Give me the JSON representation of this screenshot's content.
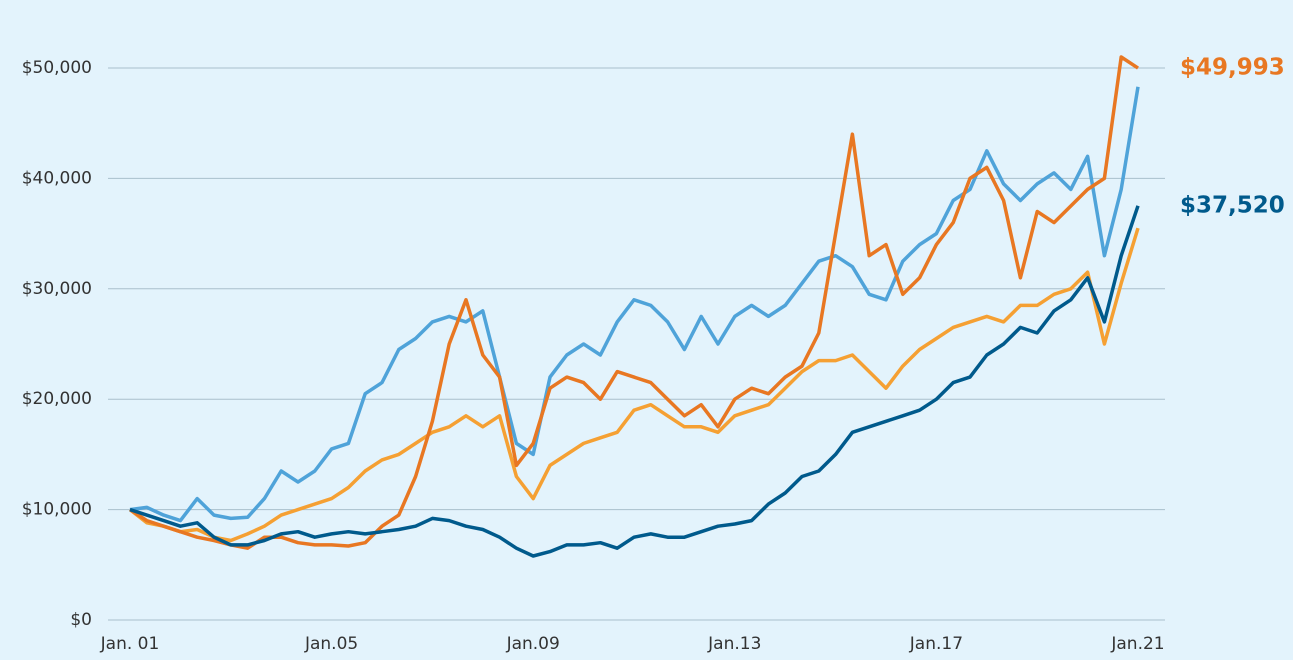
{
  "chart_data": {
    "type": "line",
    "categories": [
      "Jan. 01",
      null,
      null,
      null,
      null,
      null,
      null,
      null,
      null,
      null,
      null,
      null,
      "Jan.05",
      null,
      null,
      null,
      null,
      null,
      null,
      null,
      null,
      null,
      null,
      null,
      "Jan.09",
      null,
      null,
      null,
      null,
      null,
      null,
      null,
      null,
      null,
      null,
      null,
      "Jan.13",
      null,
      null,
      null,
      null,
      null,
      null,
      null,
      null,
      null,
      null,
      null,
      "Jan.17",
      null,
      null,
      null,
      null,
      null,
      null,
      null,
      null,
      null,
      null,
      null,
      "Jan.21"
    ],
    "series": [
      {
        "color": "#4fa3d9",
        "values": [
          10000,
          10200,
          9500,
          9000,
          11000,
          9500,
          9200,
          9300,
          11000,
          13500,
          12500,
          13500,
          15500,
          16000,
          20500,
          21500,
          24500,
          25500,
          27000,
          27500,
          27000,
          28000,
          22000,
          16000,
          15000,
          22000,
          24000,
          25000,
          24000,
          27000,
          29000,
          28500,
          27000,
          24500,
          27500,
          25000,
          27500,
          28500,
          27500,
          28500,
          30500,
          32500,
          33000,
          32000,
          29500,
          29000,
          32500,
          34000,
          35000,
          38000,
          39000,
          42500,
          39500,
          38000,
          39500,
          40500,
          39000,
          42000,
          33000,
          39000,
          48300
        ]
      },
      {
        "color": "#f5a033",
        "values": [
          10000,
          8800,
          8500,
          8000,
          8200,
          7500,
          7200,
          7800,
          8500,
          9500,
          10000,
          10500,
          11000,
          12000,
          13500,
          14500,
          15000,
          16000,
          17000,
          17500,
          18500,
          17500,
          18500,
          13000,
          11000,
          14000,
          15000,
          16000,
          16500,
          17000,
          19000,
          19500,
          18500,
          17500,
          17500,
          17000,
          18500,
          19000,
          19500,
          21000,
          22500,
          23500,
          23500,
          24000,
          22500,
          21000,
          23000,
          24500,
          25500,
          26500,
          27000,
          27500,
          27000,
          28500,
          28500,
          29500,
          30000,
          31500,
          25000,
          30500,
          35500
        ]
      },
      {
        "color": "#e87722",
        "values": [
          10000,
          9000,
          8500,
          8000,
          7500,
          7200,
          6800,
          6500,
          7500,
          7500,
          7000,
          6800,
          6800,
          6700,
          7000,
          8500,
          9500,
          13000,
          18000,
          25000,
          29000,
          24000,
          22000,
          14000,
          16000,
          21000,
          22000,
          21500,
          20000,
          22500,
          22000,
          21500,
          20000,
          18500,
          19500,
          17500,
          20000,
          21000,
          20500,
          22000,
          23000,
          26000,
          35000,
          44000,
          33000,
          34000,
          29500,
          31000,
          34000,
          36000,
          40000,
          41000,
          38000,
          31000,
          37000,
          36000,
          37500,
          39000,
          40000,
          51000,
          49993
        ],
        "value_labels": [
          null,
          null,
          null,
          null,
          null,
          null,
          null,
          null,
          null,
          null,
          null,
          null,
          null,
          null,
          null,
          null,
          null,
          null,
          null,
          null,
          null,
          null,
          null,
          null,
          null,
          null,
          null,
          null,
          null,
          null,
          null,
          null,
          null,
          null,
          null,
          null,
          null,
          null,
          null,
          null,
          null,
          null,
          null,
          null,
          null,
          null,
          null,
          null,
          null,
          null,
          null,
          null,
          null,
          null,
          null,
          null,
          null,
          null,
          null,
          null,
          "$49,993"
        ]
      },
      {
        "color": "#005a8c",
        "values": [
          10000,
          9500,
          9000,
          8500,
          8800,
          7500,
          6800,
          6800,
          7200,
          7800,
          8000,
          7500,
          7800,
          8000,
          7800,
          8000,
          8200,
          8500,
          9200,
          9000,
          8500,
          8200,
          7500,
          6500,
          5800,
          6200,
          6800,
          6800,
          7000,
          6500,
          7500,
          7800,
          7500,
          7500,
          8000,
          8500,
          8700,
          9000,
          10500,
          11500,
          13000,
          13500,
          15000,
          17000,
          17500,
          18000,
          18500,
          19000,
          20000,
          21500,
          22000,
          24000,
          25000,
          26500,
          26000,
          28000,
          29000,
          31000,
          27000,
          33000,
          37520
        ],
        "value_labels": [
          null,
          null,
          null,
          null,
          null,
          null,
          null,
          null,
          null,
          null,
          null,
          null,
          null,
          null,
          null,
          null,
          null,
          null,
          null,
          null,
          null,
          null,
          null,
          null,
          null,
          null,
          null,
          null,
          null,
          null,
          null,
          null,
          null,
          null,
          null,
          null,
          null,
          null,
          null,
          null,
          null,
          null,
          null,
          null,
          null,
          null,
          null,
          null,
          null,
          null,
          null,
          null,
          null,
          null,
          null,
          null,
          null,
          null,
          null,
          null,
          "$37,520"
        ]
      }
    ],
    "ylim": [
      0,
      50000
    ],
    "yticks": [
      {
        "value": 0,
        "label": "$0"
      },
      {
        "value": 10000,
        "label": "$10,000"
      },
      {
        "value": 20000,
        "label": "$20,000"
      },
      {
        "value": 30000,
        "label": "$30,000"
      },
      {
        "value": 40000,
        "label": "$40,000"
      },
      {
        "value": 50000,
        "label": "$50,000"
      }
    ],
    "grid": true
  }
}
